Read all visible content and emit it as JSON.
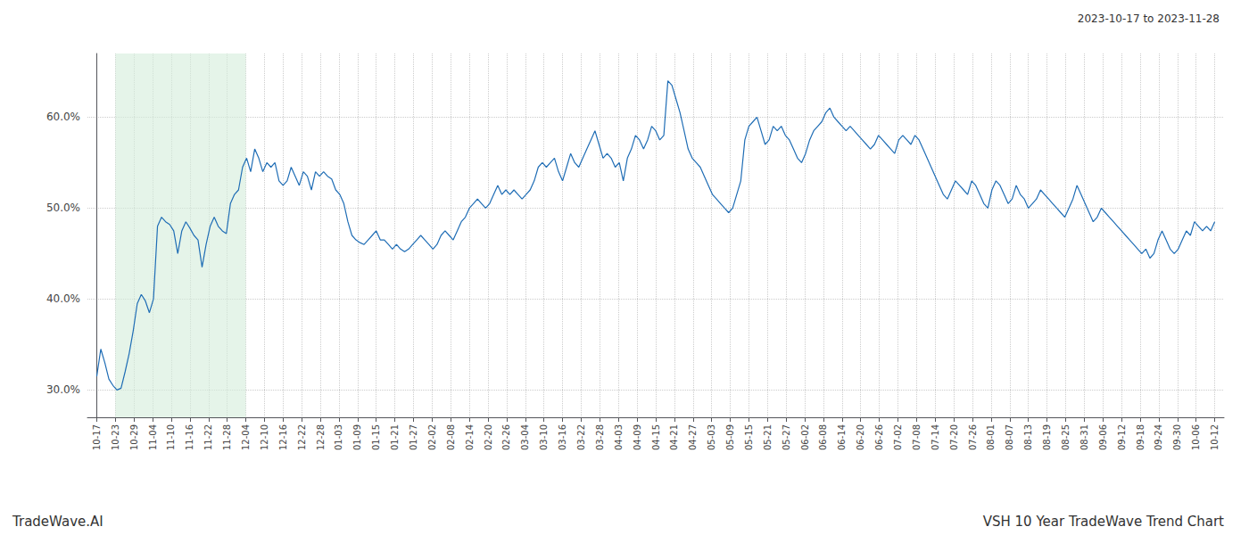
{
  "chart_data": {
    "type": "line",
    "title": "2023-10-17 to 2023-11-28",
    "annotations": [
      "TradeWave.AI",
      "VSH 10 Year TradeWave Trend Chart"
    ],
    "color": "#1f6db5",
    "highlight": [
      1,
      8
    ],
    "highlight_color": "#d4edda",
    "grid": true,
    "xlim": [
      -0.5,
      60.5
    ],
    "xticks": [
      {
        "value": 0,
        "label": "10-17"
      },
      {
        "value": 1,
        "label": "10-23"
      },
      {
        "value": 2,
        "label": "10-29"
      },
      {
        "value": 3,
        "label": "11-04"
      },
      {
        "value": 4,
        "label": "11-10"
      },
      {
        "value": 5,
        "label": "11-16"
      },
      {
        "value": 6,
        "label": "11-22"
      },
      {
        "value": 7,
        "label": "11-28"
      },
      {
        "value": 8,
        "label": "12-04"
      },
      {
        "value": 9,
        "label": "12-10"
      },
      {
        "value": 10,
        "label": "12-16"
      },
      {
        "value": 11,
        "label": "12-22"
      },
      {
        "value": 12,
        "label": "12-28"
      },
      {
        "value": 13,
        "label": "01-03"
      },
      {
        "value": 14,
        "label": "01-09"
      },
      {
        "value": 15,
        "label": "01-15"
      },
      {
        "value": 16,
        "label": "01-21"
      },
      {
        "value": 17,
        "label": "01-27"
      },
      {
        "value": 18,
        "label": "02-02"
      },
      {
        "value": 19,
        "label": "02-08"
      },
      {
        "value": 20,
        "label": "02-14"
      },
      {
        "value": 21,
        "label": "02-20"
      },
      {
        "value": 22,
        "label": "02-26"
      },
      {
        "value": 23,
        "label": "03-04"
      },
      {
        "value": 24,
        "label": "03-10"
      },
      {
        "value": 25,
        "label": "03-16"
      },
      {
        "value": 26,
        "label": "03-22"
      },
      {
        "value": 27,
        "label": "03-28"
      },
      {
        "value": 28,
        "label": "04-03"
      },
      {
        "value": 29,
        "label": "04-09"
      },
      {
        "value": 30,
        "label": "04-15"
      },
      {
        "value": 31,
        "label": "04-21"
      },
      {
        "value": 32,
        "label": "04-27"
      },
      {
        "value": 33,
        "label": "05-03"
      },
      {
        "value": 34,
        "label": "05-09"
      },
      {
        "value": 35,
        "label": "05-15"
      },
      {
        "value": 36,
        "label": "05-21"
      },
      {
        "value": 37,
        "label": "05-27"
      },
      {
        "value": 38,
        "label": "06-02"
      },
      {
        "value": 39,
        "label": "06-08"
      },
      {
        "value": 40,
        "label": "06-14"
      },
      {
        "value": 41,
        "label": "06-20"
      },
      {
        "value": 42,
        "label": "06-26"
      },
      {
        "value": 43,
        "label": "07-02"
      },
      {
        "value": 44,
        "label": "07-08"
      },
      {
        "value": 45,
        "label": "07-14"
      },
      {
        "value": 46,
        "label": "07-20"
      },
      {
        "value": 47,
        "label": "07-26"
      },
      {
        "value": 48,
        "label": "08-01"
      },
      {
        "value": 49,
        "label": "08-07"
      },
      {
        "value": 50,
        "label": "08-13"
      },
      {
        "value": 51,
        "label": "08-19"
      },
      {
        "value": 52,
        "label": "08-25"
      },
      {
        "value": 53,
        "label": "08-31"
      },
      {
        "value": 54,
        "label": "09-06"
      },
      {
        "value": 55,
        "label": "09-12"
      },
      {
        "value": 56,
        "label": "09-18"
      },
      {
        "value": 57,
        "label": "09-24"
      },
      {
        "value": 58,
        "label": "09-30"
      },
      {
        "value": 59,
        "label": "10-06"
      },
      {
        "value": 60,
        "label": "10-12"
      }
    ],
    "ylim": [
      27.0,
      67.0
    ],
    "yticks": [
      {
        "value": 30.0,
        "label": "30.0%"
      },
      {
        "value": 40.0,
        "label": "40.0%"
      },
      {
        "value": 50.0,
        "label": "50.0%"
      },
      {
        "value": 60.0,
        "label": "60.0%"
      }
    ],
    "x": [
      0,
      0.2174,
      0.4348,
      0.6522,
      0.8696,
      1.087,
      1.3043,
      1.5217,
      1.7391,
      1.9565,
      2.1739,
      2.3913,
      2.6087,
      2.8261,
      3.0435,
      3.2609,
      3.4783,
      3.6957,
      3.913,
      4.1304,
      4.3478,
      4.5652,
      4.7826,
      5,
      5.2174,
      5.4348,
      5.6522,
      5.8696,
      6.087,
      6.3043,
      6.5217,
      6.7391,
      6.9565,
      7.1739,
      7.3913,
      7.6087,
      7.8261,
      8.0435,
      8.2609,
      8.4783,
      8.6957,
      8.913,
      9.1304,
      9.3478,
      9.5652,
      9.7826,
      10,
      10.2174,
      10.4348,
      10.6522,
      10.8696,
      11.087,
      11.3043,
      11.5217,
      11.7391,
      11.9565,
      12.1739,
      12.3913,
      12.6087,
      12.8261,
      13.0435,
      13.2609,
      13.4783,
      13.6957,
      13.913,
      14.1304,
      14.3478,
      14.5652,
      14.7826,
      15,
      15.2174,
      15.4348,
      15.6522,
      15.8696,
      16.087,
      16.3043,
      16.5217,
      16.7391,
      16.9565,
      17.1739,
      17.3913,
      17.6087,
      17.8261,
      18.0435,
      18.2609,
      18.4783,
      18.6957,
      18.913,
      19.1304,
      19.3478,
      19.5652,
      19.7826,
      20,
      20.2174,
      20.4348,
      20.6522,
      20.8696,
      21.087,
      21.3043,
      21.5217,
      21.7391,
      21.9565,
      22.1739,
      22.3913,
      22.6087,
      22.8261,
      23.0435,
      23.2609,
      23.4783,
      23.6957,
      23.913,
      24.1304,
      24.3478,
      24.5652,
      24.7826,
      25,
      25.2174,
      25.4348,
      25.6522,
      25.8696,
      26.087,
      26.3043,
      26.5217,
      26.7391,
      26.9565,
      27.1739,
      27.3913,
      27.6087,
      27.8261,
      28.0435,
      28.2609,
      28.4783,
      28.6957,
      28.913,
      29.1304,
      29.3478,
      29.5652,
      29.7826,
      30,
      30.2174,
      30.4348,
      30.6522,
      30.8696,
      31.087,
      31.3043,
      31.5217,
      31.7391,
      31.9565,
      32.1739,
      32.3913,
      32.6087,
      32.8261,
      33.0435,
      33.2609,
      33.4783,
      33.6957,
      33.913,
      34.1304,
      34.3478,
      34.5652,
      34.7826,
      35,
      35.2174,
      35.4348,
      35.6522,
      35.8696,
      36.087,
      36.3043,
      36.5217,
      36.7391,
      36.9565,
      37.1739,
      37.3913,
      37.6087,
      37.8261,
      38.0435,
      38.2609,
      38.4783,
      38.6957,
      38.913,
      39.1304,
      39.3478,
      39.5652,
      39.7826,
      40,
      40.2174,
      40.4348,
      40.6522,
      40.8696,
      41.087,
      41.3043,
      41.5217,
      41.7391,
      41.9565,
      42.1739,
      42.3913,
      42.6087,
      42.8261,
      43.0435,
      43.2609,
      43.4783,
      43.6957,
      43.913,
      44.1304,
      44.3478,
      44.5652,
      44.7826,
      45,
      45.2174,
      45.4348,
      45.6522,
      45.8696,
      46.087,
      46.3043,
      46.5217,
      46.7391,
      46.9565,
      47.1739,
      47.3913,
      47.6087,
      47.8261,
      48.0435,
      48.2609,
      48.4783,
      48.6957,
      48.913,
      49.1304,
      49.3478,
      49.5652,
      49.7826,
      50,
      50.2174,
      50.4348,
      50.6522,
      50.8696,
      51.087,
      51.3043,
      51.5217,
      51.7391,
      51.9565,
      52.1739,
      52.3913,
      52.6087,
      52.8261,
      53.0435,
      53.2609,
      53.4783,
      53.6957,
      53.913,
      54.1304,
      54.3478,
      54.5652,
      54.7826,
      55,
      55.2174,
      55.4348,
      55.6522,
      55.8696,
      56.087,
      56.3043,
      56.5217,
      56.7391,
      56.9565,
      57.1739,
      57.3913,
      57.6087,
      57.8261,
      58.0435,
      58.2609,
      58.4783,
      58.6957,
      58.913,
      59.1304,
      59.3478,
      59.5652,
      59.7826,
      60
    ],
    "values": [
      31.5,
      34.5,
      33.0,
      31.2,
      30.5,
      30.0,
      30.2,
      32.0,
      34.0,
      36.5,
      39.5,
      40.5,
      39.8,
      38.5,
      40.0,
      48.0,
      49.0,
      48.5,
      48.2,
      47.5,
      45.0,
      47.5,
      48.5,
      47.8,
      47.0,
      46.5,
      43.5,
      46.0,
      48.0,
      49.0,
      48.0,
      47.5,
      47.2,
      50.5,
      51.5,
      52.0,
      54.5,
      55.5,
      54.0,
      56.5,
      55.5,
      54.0,
      55.0,
      54.5,
      55.0,
      53.0,
      52.5,
      53.0,
      54.5,
      53.5,
      52.5,
      54.0,
      53.5,
      52.0,
      54.0,
      53.5,
      54.0,
      53.5,
      53.2,
      52.0,
      51.5,
      50.5,
      48.5,
      47.0,
      46.5,
      46.2,
      46.0,
      46.5,
      47.0,
      47.5,
      46.5,
      46.5,
      46.0,
      45.5,
      46.0,
      45.5,
      45.2,
      45.5,
      46.0,
      46.5,
      47.0,
      46.5,
      46.0,
      45.5,
      46.0,
      47.0,
      47.5,
      47.0,
      46.5,
      47.5,
      48.5,
      49.0,
      50.0,
      50.5,
      51.0,
      50.5,
      50.0,
      50.5,
      51.5,
      52.5,
      51.5,
      52.0,
      51.5,
      52.0,
      51.5,
      51.0,
      51.5,
      52.0,
      53.0,
      54.5,
      55.0,
      54.5,
      55.0,
      55.5,
      54.0,
      53.0,
      54.5,
      56.0,
      55.0,
      54.5,
      55.5,
      56.5,
      57.5,
      58.5,
      57.0,
      55.5,
      56.0,
      55.5,
      54.5,
      55.0,
      53.0,
      55.5,
      56.5,
      58.0,
      57.5,
      56.5,
      57.5,
      59.0,
      58.5,
      57.5,
      58.0,
      64.0,
      63.5,
      62.0,
      60.5,
      58.5,
      56.5,
      55.5,
      55.0,
      54.5,
      53.5,
      52.5,
      51.5,
      51.0,
      50.5,
      50.0,
      49.5,
      50.0,
      51.5,
      53.0,
      57.5,
      59.0,
      59.5,
      60.0,
      58.5,
      57.0,
      57.5,
      59.0,
      58.5,
      59.0,
      58.0,
      57.5,
      56.5,
      55.5,
      55.0,
      56.0,
      57.5,
      58.5,
      59.0,
      59.5,
      60.5,
      61.0,
      60.0,
      59.5,
      59.0,
      58.5,
      59.0,
      58.5,
      58.0,
      57.5,
      57.0,
      56.5,
      57.0,
      58.0,
      57.5,
      57.0,
      56.5,
      56.0,
      57.5,
      58.0,
      57.5,
      57.0,
      58.0,
      57.5,
      56.5,
      55.5,
      54.5,
      53.5,
      52.5,
      51.5,
      51.0,
      52.0,
      53.0,
      52.5,
      52.0,
      51.5,
      53.0,
      52.5,
      51.5,
      50.5,
      50.0,
      52.0,
      53.0,
      52.5,
      51.5,
      50.5,
      51.0,
      52.5,
      51.5,
      51.0,
      50.0,
      50.5,
      51.0,
      52.0,
      51.5,
      51.0,
      50.5,
      50.0,
      49.5,
      49.0,
      50.0,
      51.0,
      52.5,
      51.5,
      50.5,
      49.5,
      48.5,
      49.0,
      50.0,
      49.5,
      49.0,
      48.5,
      48.0,
      47.5,
      47.0,
      46.5,
      46.0,
      45.5,
      45.0,
      45.5,
      44.5,
      45.0,
      46.5,
      47.5,
      46.5,
      45.5,
      45.0,
      45.5,
      46.5,
      47.5,
      47.0,
      48.5,
      48.0,
      47.5,
      48.0,
      47.5,
      48.5
    ]
  }
}
